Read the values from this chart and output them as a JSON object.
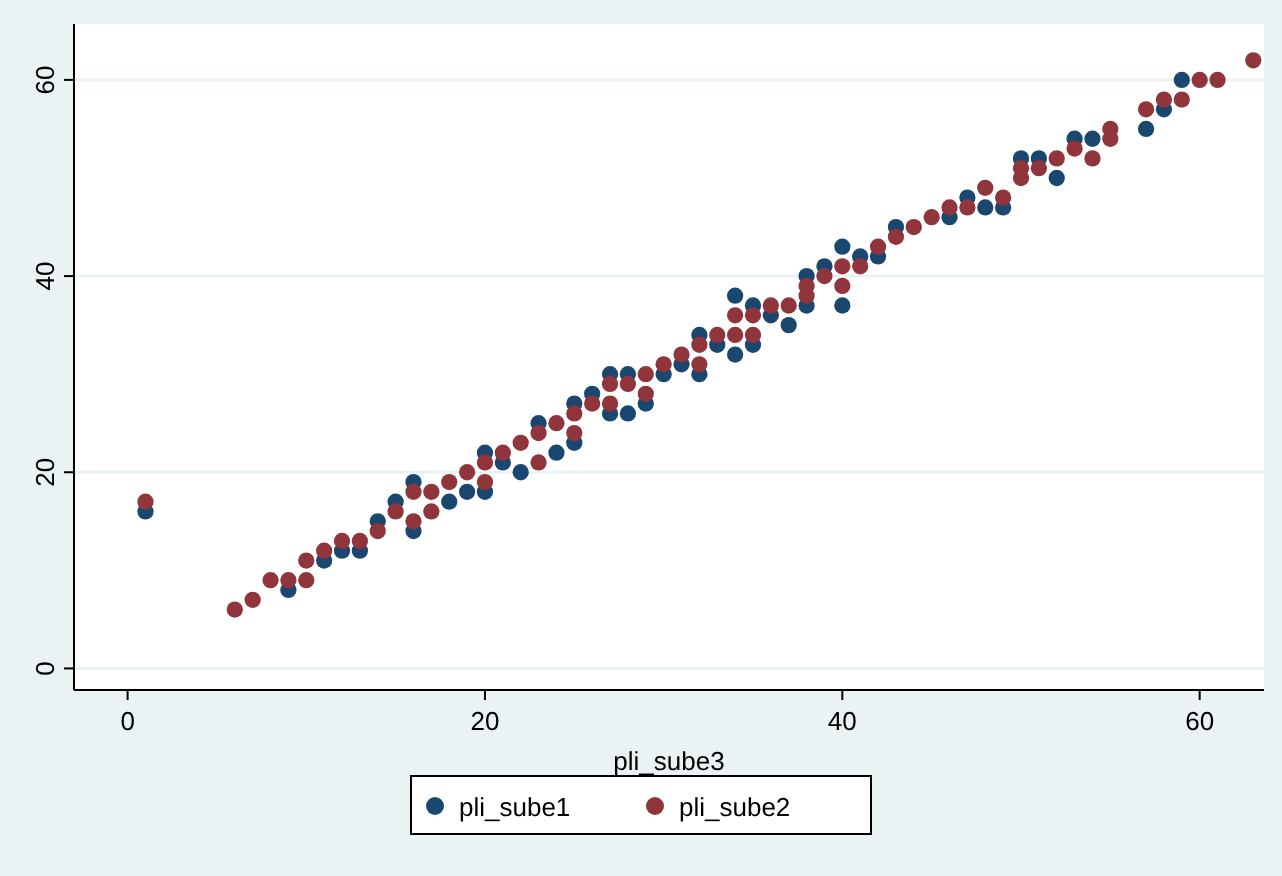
{
  "chart_data": {
    "type": "scatter",
    "xlabel": "pli_sube3",
    "xlim": [
      -3,
      63.6
    ],
    "ylim": [
      -2.2,
      65.7
    ],
    "xticks": [
      0,
      20,
      40,
      60
    ],
    "yticks": [
      0,
      20,
      40,
      60
    ],
    "grid": "y",
    "legend": "bottom",
    "marker": "circle",
    "series": [
      {
        "name": "pli_sube1",
        "color": "#1a476f",
        "x": [
          1,
          9,
          11,
          12,
          13,
          14,
          15,
          16,
          16,
          18,
          19,
          20,
          20,
          21,
          22,
          23,
          24,
          25,
          25,
          26,
          27,
          27,
          28,
          28,
          29,
          30,
          31,
          32,
          32,
          33,
          34,
          34,
          35,
          35,
          36,
          37,
          38,
          38,
          39,
          40,
          40,
          41,
          42,
          43,
          46,
          47,
          48,
          49,
          50,
          51,
          52,
          53,
          54,
          57,
          58,
          59
        ],
        "values": [
          16,
          8,
          11,
          12,
          12,
          15,
          17,
          19,
          14,
          17,
          18,
          22,
          18,
          21,
          20,
          25,
          22,
          27,
          23,
          28,
          30,
          26,
          30,
          26,
          27,
          30,
          31,
          34,
          30,
          33,
          38,
          32,
          37,
          33,
          36,
          35,
          40,
          37,
          41,
          43,
          37,
          42,
          42,
          45,
          46,
          48,
          47,
          47,
          52,
          52,
          50,
          54,
          54,
          55,
          57,
          60
        ]
      },
      {
        "name": "pli_sube2",
        "color": "#90353b",
        "x": [
          1,
          6,
          7,
          8,
          9,
          10,
          10,
          11,
          12,
          13,
          14,
          15,
          16,
          16,
          17,
          17,
          18,
          19,
          20,
          20,
          21,
          22,
          23,
          23,
          24,
          25,
          25,
          26,
          27,
          27,
          28,
          29,
          29,
          30,
          31,
          32,
          32,
          33,
          34,
          34,
          35,
          35,
          36,
          37,
          38,
          38,
          39,
          40,
          40,
          41,
          42,
          43,
          44,
          45,
          46,
          47,
          48,
          49,
          50,
          50,
          51,
          52,
          53,
          54,
          55,
          55,
          57,
          58,
          59,
          60,
          61,
          63
        ],
        "values": [
          17,
          6,
          7,
          9,
          9,
          11,
          9,
          12,
          13,
          13,
          14,
          16,
          18,
          15,
          18,
          16,
          19,
          20,
          21,
          19,
          22,
          23,
          24,
          21,
          25,
          26,
          24,
          27,
          29,
          27,
          29,
          30,
          28,
          31,
          32,
          33,
          31,
          34,
          36,
          34,
          36,
          34,
          37,
          37,
          39,
          38,
          40,
          41,
          39,
          41,
          43,
          44,
          45,
          46,
          47,
          47,
          49,
          48,
          51,
          50,
          51,
          52,
          53,
          52,
          55,
          54,
          57,
          58,
          58,
          60,
          60,
          62
        ]
      }
    ]
  }
}
